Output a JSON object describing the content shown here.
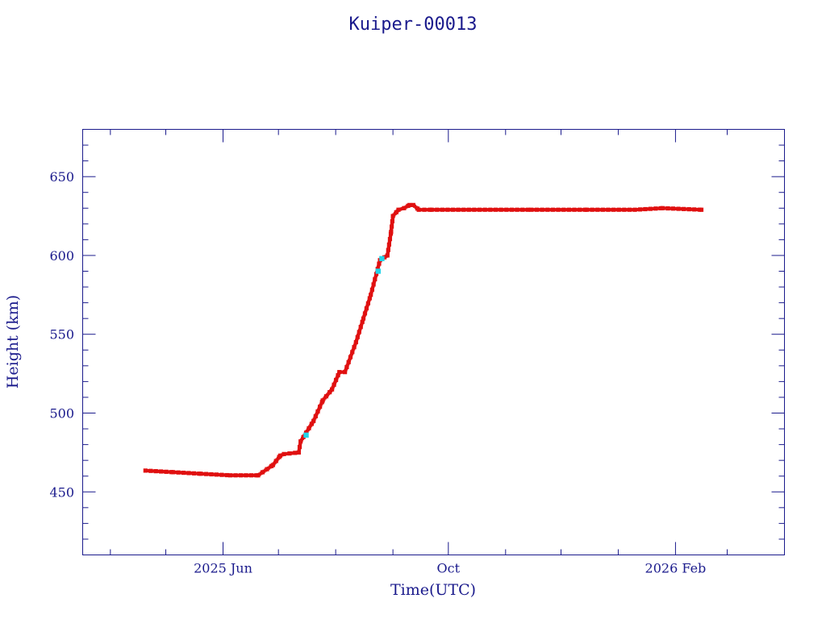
{
  "chart_data": {
    "type": "scatter",
    "title": "Kuiper-00013",
    "xlabel": "Time(UTC)",
    "ylabel": "Height (km)",
    "x_is_date": true,
    "xlim": [
      "2025-03-17",
      "2026-04-01"
    ],
    "ylim": [
      410,
      680
    ],
    "y_ticks": [
      450,
      500,
      550,
      600,
      650
    ],
    "x_ticks": [
      {
        "date": "2025-06-01",
        "label": "2025 Jun"
      },
      {
        "date": "2025-10-01",
        "label": "Oct"
      },
      {
        "date": "2026-02-01",
        "label": "2026 Feb"
      }
    ],
    "x_minor_ticks": [
      "2025-04-01",
      "2025-05-01",
      "2025-07-01",
      "2025-08-01",
      "2025-09-01",
      "2025-11-01",
      "2025-12-01",
      "2026-01-01",
      "2026-03-01"
    ],
    "grid": false,
    "colors": {
      "primary": "#e01010",
      "secondary": "#22d4e8",
      "frame": "#1a1a8c"
    },
    "series": [
      {
        "color": "#e01010",
        "x": [
          "2025-04-20",
          "2025-05-05",
          "2025-05-20",
          "2025-06-05",
          "2025-06-20",
          "2025-06-28",
          "2025-07-02",
          "2025-07-04",
          "2025-07-12",
          "2025-07-13",
          "2025-07-20",
          "2025-07-25",
          "2025-07-30",
          "2025-08-03",
          "2025-08-06",
          "2025-08-12",
          "2025-08-16",
          "2025-08-20",
          "2025-08-25",
          "2025-08-29",
          "2025-08-31",
          "2025-09-01",
          "2025-09-04",
          "2025-09-07",
          "2025-09-10",
          "2025-09-12",
          "2025-09-15",
          "2025-09-22",
          "2025-10-15",
          "2025-11-15",
          "2025-12-15",
          "2026-01-10",
          "2026-01-25",
          "2026-02-15"
        ],
        "y": [
          463.5,
          462.5,
          461.5,
          460.5,
          460.5,
          467,
          473,
          474,
          475,
          482,
          495,
          508,
          515,
          526,
          526,
          545,
          560,
          575,
          597,
          600,
          615,
          625,
          629,
          630,
          632,
          632,
          629,
          629,
          629,
          629,
          629,
          629,
          630,
          629
        ]
      },
      {
        "color": "#22d4e8",
        "x": [
          "2025-07-16",
          "2025-08-24",
          "2025-08-26"
        ],
        "y": [
          486,
          590,
          598
        ]
      }
    ]
  }
}
